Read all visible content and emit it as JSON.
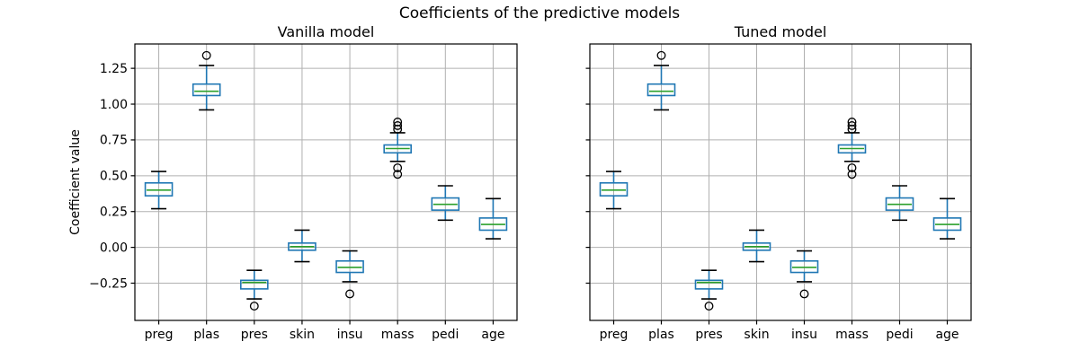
{
  "figure": {
    "title": "Coefficients of the predictive models",
    "ylabel": "Coefficient value",
    "background": "#ffffff"
  },
  "style": {
    "box_color": "#1f77b4",
    "whisker_color": "#1f77b4",
    "median_color": "#2ca02c",
    "cap_color": "#000000",
    "flier_color": "#000000",
    "grid_color": "#b0b0b0",
    "spine_color": "#000000",
    "text_color": "#000000"
  },
  "chart_data": [
    {
      "type": "boxplot",
      "title": "Vanilla model",
      "categories": [
        "preg",
        "plas",
        "pres",
        "skin",
        "insu",
        "mass",
        "pedi",
        "age"
      ],
      "ylabel": "Coefficient value",
      "ylim": [
        -0.51,
        1.42
      ],
      "yticks": [
        -0.25,
        0.0,
        0.25,
        0.5,
        0.75,
        1.0,
        1.25
      ],
      "ytick_labels": [
        "−0.25",
        "0.00",
        "0.25",
        "0.50",
        "0.75",
        "1.00",
        "1.25"
      ],
      "grid": true,
      "boxes": [
        {
          "label": "preg",
          "whislo": 0.27,
          "q1": 0.36,
          "med": 0.4,
          "q3": 0.45,
          "whishi": 0.53,
          "fliers": []
        },
        {
          "label": "plas",
          "whislo": 0.96,
          "q1": 1.06,
          "med": 1.09,
          "q3": 1.14,
          "whishi": 1.27,
          "fliers": [
            1.34
          ]
        },
        {
          "label": "pres",
          "whislo": -0.36,
          "q1": -0.29,
          "med": -0.245,
          "q3": -0.23,
          "whishi": -0.16,
          "fliers": [
            -0.41
          ]
        },
        {
          "label": "skin",
          "whislo": -0.1,
          "q1": -0.02,
          "med": 0.005,
          "q3": 0.03,
          "whishi": 0.12,
          "fliers": []
        },
        {
          "label": "insu",
          "whislo": -0.24,
          "q1": -0.175,
          "med": -0.14,
          "q3": -0.095,
          "whishi": -0.025,
          "fliers": [
            -0.325
          ]
        },
        {
          "label": "mass",
          "whislo": 0.6,
          "q1": 0.66,
          "med": 0.69,
          "q3": 0.715,
          "whishi": 0.8,
          "fliers": [
            0.875,
            0.85,
            0.825,
            0.555,
            0.51
          ]
        },
        {
          "label": "pedi",
          "whislo": 0.19,
          "q1": 0.26,
          "med": 0.3,
          "q3": 0.345,
          "whishi": 0.43,
          "fliers": []
        },
        {
          "label": "age",
          "whislo": 0.06,
          "q1": 0.12,
          "med": 0.16,
          "q3": 0.205,
          "whishi": 0.34,
          "fliers": []
        }
      ]
    },
    {
      "type": "boxplot",
      "title": "Tuned model",
      "categories": [
        "preg",
        "plas",
        "pres",
        "skin",
        "insu",
        "mass",
        "pedi",
        "age"
      ],
      "ylabel": "Coefficient value",
      "ylim": [
        -0.51,
        1.42
      ],
      "yticks": [
        -0.25,
        0.0,
        0.25,
        0.5,
        0.75,
        1.0,
        1.25
      ],
      "ytick_labels": [
        "−0.25",
        "0.00",
        "0.25",
        "0.50",
        "0.75",
        "1.00",
        "1.25"
      ],
      "grid": true,
      "boxes": [
        {
          "label": "preg",
          "whislo": 0.27,
          "q1": 0.36,
          "med": 0.4,
          "q3": 0.45,
          "whishi": 0.53,
          "fliers": []
        },
        {
          "label": "plas",
          "whislo": 0.96,
          "q1": 1.06,
          "med": 1.09,
          "q3": 1.14,
          "whishi": 1.27,
          "fliers": [
            1.34
          ]
        },
        {
          "label": "pres",
          "whislo": -0.36,
          "q1": -0.29,
          "med": -0.245,
          "q3": -0.23,
          "whishi": -0.16,
          "fliers": [
            -0.41
          ]
        },
        {
          "label": "skin",
          "whislo": -0.1,
          "q1": -0.02,
          "med": 0.005,
          "q3": 0.03,
          "whishi": 0.12,
          "fliers": []
        },
        {
          "label": "insu",
          "whislo": -0.24,
          "q1": -0.175,
          "med": -0.14,
          "q3": -0.095,
          "whishi": -0.025,
          "fliers": [
            -0.325
          ]
        },
        {
          "label": "mass",
          "whislo": 0.6,
          "q1": 0.66,
          "med": 0.69,
          "q3": 0.715,
          "whishi": 0.8,
          "fliers": [
            0.875,
            0.85,
            0.825,
            0.555,
            0.51
          ]
        },
        {
          "label": "pedi",
          "whislo": 0.19,
          "q1": 0.26,
          "med": 0.3,
          "q3": 0.345,
          "whishi": 0.43,
          "fliers": []
        },
        {
          "label": "age",
          "whislo": 0.06,
          "q1": 0.12,
          "med": 0.16,
          "q3": 0.205,
          "whishi": 0.34,
          "fliers": []
        }
      ]
    }
  ]
}
